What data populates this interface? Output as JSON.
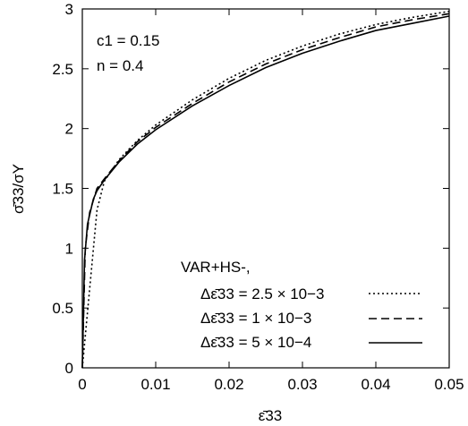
{
  "chart_data": {
    "type": "line",
    "xlabel": "ε̄33",
    "ylabel": "σ̄33/σY",
    "xlim": [
      0,
      0.05
    ],
    "ylim": [
      0,
      3
    ],
    "x_ticks": [
      {
        "value": 0,
        "label": "0"
      },
      {
        "value": 0.01,
        "label": "0.01"
      },
      {
        "value": 0.02,
        "label": "0.02"
      },
      {
        "value": 0.03,
        "label": "0.03"
      },
      {
        "value": 0.04,
        "label": "0.04"
      },
      {
        "value": 0.05,
        "label": "0.05"
      }
    ],
    "y_ticks": [
      {
        "value": 0,
        "label": "0"
      },
      {
        "value": 0.5,
        "label": "0.5"
      },
      {
        "value": 1,
        "label": "1"
      },
      {
        "value": 1.5,
        "label": "1.5"
      },
      {
        "value": 2,
        "label": "2"
      },
      {
        "value": 2.5,
        "label": "2.5"
      },
      {
        "value": 3,
        "label": "3"
      }
    ],
    "grid": false,
    "legend_position": "bottom-right",
    "legend_title": "VAR+HS-,",
    "annotations": [
      "c1 = 0.15",
      "n = 0.4"
    ],
    "series": [
      {
        "name": "Δε̄33 = 2.5 × 10−3",
        "style": "dotted",
        "x": [
          0,
          0.001,
          0.002,
          0.003,
          0.005,
          0.0075,
          0.01,
          0.015,
          0.02,
          0.025,
          0.03,
          0.035,
          0.04,
          0.045,
          0.05
        ],
        "y": [
          0,
          0.66,
          1.32,
          1.56,
          1.74,
          1.9,
          2.03,
          2.24,
          2.42,
          2.57,
          2.69,
          2.79,
          2.87,
          2.93,
          2.98
        ]
      },
      {
        "name": "Δε̄33 = 1 × 10−3",
        "style": "dashed",
        "x": [
          0,
          0.0004,
          0.001,
          0.002,
          0.003,
          0.005,
          0.0075,
          0.01,
          0.015,
          0.02,
          0.025,
          0.03,
          0.035,
          0.04,
          0.045,
          0.05
        ],
        "y": [
          0,
          1.0,
          1.3,
          1.5,
          1.58,
          1.73,
          1.89,
          2.01,
          2.21,
          2.39,
          2.54,
          2.66,
          2.76,
          2.85,
          2.91,
          2.96
        ]
      },
      {
        "name": "Δε̄33 = 5 × 10−4",
        "style": "solid",
        "x": [
          0,
          0.0003,
          0.0007,
          0.0015,
          0.002,
          0.003,
          0.005,
          0.0075,
          0.01,
          0.015,
          0.02,
          0.025,
          0.03,
          0.035,
          0.04,
          0.045,
          0.05
        ],
        "y": [
          0,
          0.9,
          1.2,
          1.41,
          1.48,
          1.57,
          1.72,
          1.87,
          1.99,
          2.19,
          2.36,
          2.51,
          2.63,
          2.73,
          2.82,
          2.88,
          2.94
        ]
      }
    ]
  }
}
